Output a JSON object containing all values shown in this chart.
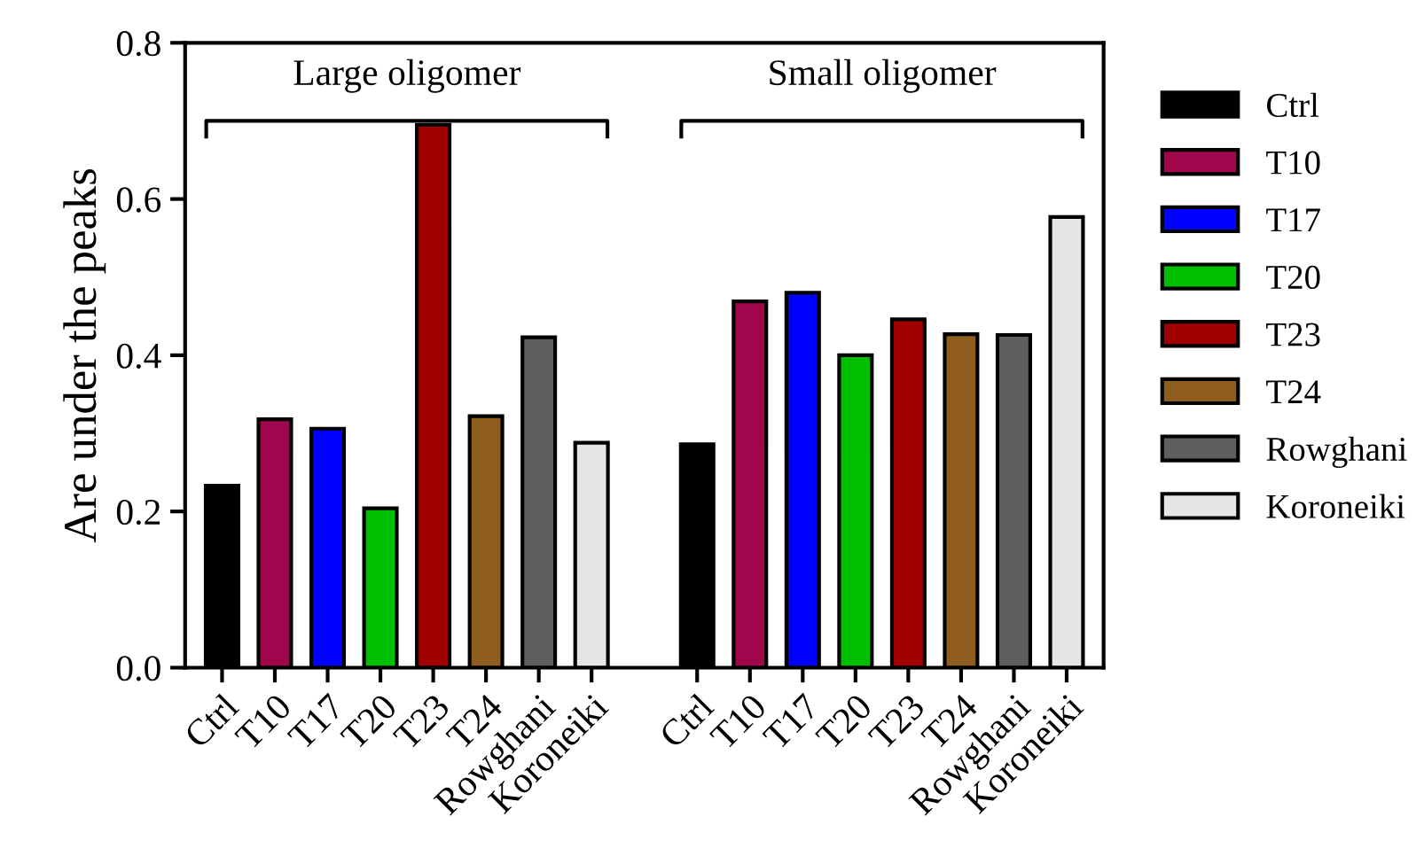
{
  "chart_data": {
    "type": "bar",
    "ylabel": "Are under the peaks",
    "categories": [
      "Ctrl",
      "T10",
      "T17",
      "T20",
      "T23",
      "T24",
      "Rowghani",
      "Koroneiki",
      null,
      "Ctrl",
      "T10",
      "T17",
      "T20",
      "T23",
      "T24",
      "Rowghani",
      "Koroneiki"
    ],
    "series": [
      {
        "name": "Ctrl",
        "color": "#000000",
        "values": [
          0.233,
          null,
          null,
          null,
          null,
          null,
          null,
          null,
          null,
          0.286,
          null,
          null,
          null,
          null,
          null,
          null,
          null
        ]
      },
      {
        "name": "T10",
        "color": "#a0064c",
        "values": [
          null,
          0.318,
          null,
          null,
          null,
          null,
          null,
          null,
          null,
          null,
          0.469,
          null,
          null,
          null,
          null,
          null,
          null
        ]
      },
      {
        "name": "T17",
        "color": "#0000ff",
        "values": [
          null,
          null,
          0.306,
          null,
          null,
          null,
          null,
          null,
          null,
          null,
          null,
          0.48,
          null,
          null,
          null,
          null,
          null
        ]
      },
      {
        "name": "T20",
        "color": "#00be00",
        "values": [
          null,
          null,
          null,
          0.204,
          null,
          null,
          null,
          null,
          null,
          null,
          null,
          null,
          0.4,
          null,
          null,
          null,
          null
        ]
      },
      {
        "name": "T23",
        "color": "#a00000",
        "values": [
          null,
          null,
          null,
          null,
          0.695,
          null,
          null,
          null,
          null,
          null,
          null,
          null,
          null,
          0.446,
          null,
          null,
          null
        ]
      },
      {
        "name": "T24",
        "color": "#8f5e1f",
        "values": [
          null,
          null,
          null,
          null,
          null,
          0.322,
          null,
          null,
          null,
          null,
          null,
          null,
          null,
          null,
          0.427,
          null,
          null
        ]
      },
      {
        "name": "Rowghani",
        "color": "#5f5f5f",
        "values": [
          null,
          null,
          null,
          null,
          null,
          null,
          0.423,
          null,
          null,
          null,
          null,
          null,
          null,
          null,
          null,
          0.426,
          null
        ]
      },
      {
        "name": "Koroneiki",
        "color": "#e6e6e6",
        "values": [
          null,
          null,
          null,
          null,
          null,
          null,
          null,
          0.288,
          null,
          null,
          null,
          null,
          null,
          null,
          null,
          null,
          0.577
        ]
      }
    ],
    "ylim": [
      0,
      0.8
    ],
    "yticks": [
      {
        "value": 0,
        "label": "0.0"
      },
      0.2,
      0.4,
      0.6,
      0.8
    ],
    "annotations": [
      "Large oligomer",
      "Small oligomer"
    ],
    "legend": "right",
    "grid": false
  }
}
